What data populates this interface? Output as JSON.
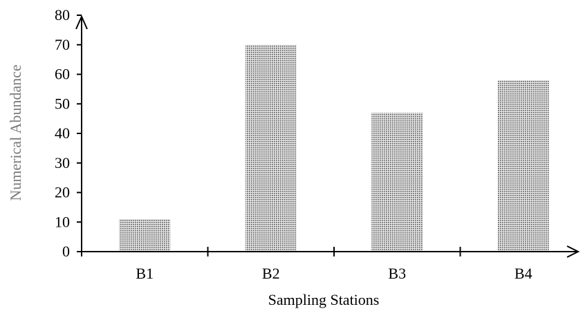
{
  "chart_data": {
    "type": "bar",
    "title": "",
    "xlabel": "Sampling Stations",
    "ylabel": "Numerical Abundance",
    "categories": [
      "B1",
      "B2",
      "B3",
      "B4"
    ],
    "values": [
      11,
      70,
      47,
      58
    ],
    "ylim": [
      0,
      80
    ],
    "yticks": [
      0,
      10,
      20,
      30,
      40,
      50,
      60,
      70,
      80
    ],
    "grid": false,
    "legend": "none",
    "bar_fill": "dotted-gray",
    "colors": {
      "bar_dot": "#555555",
      "bar_bg": "#e6e6e6",
      "axis": "#000000",
      "ylabel_text": "#7a7a7a"
    }
  }
}
